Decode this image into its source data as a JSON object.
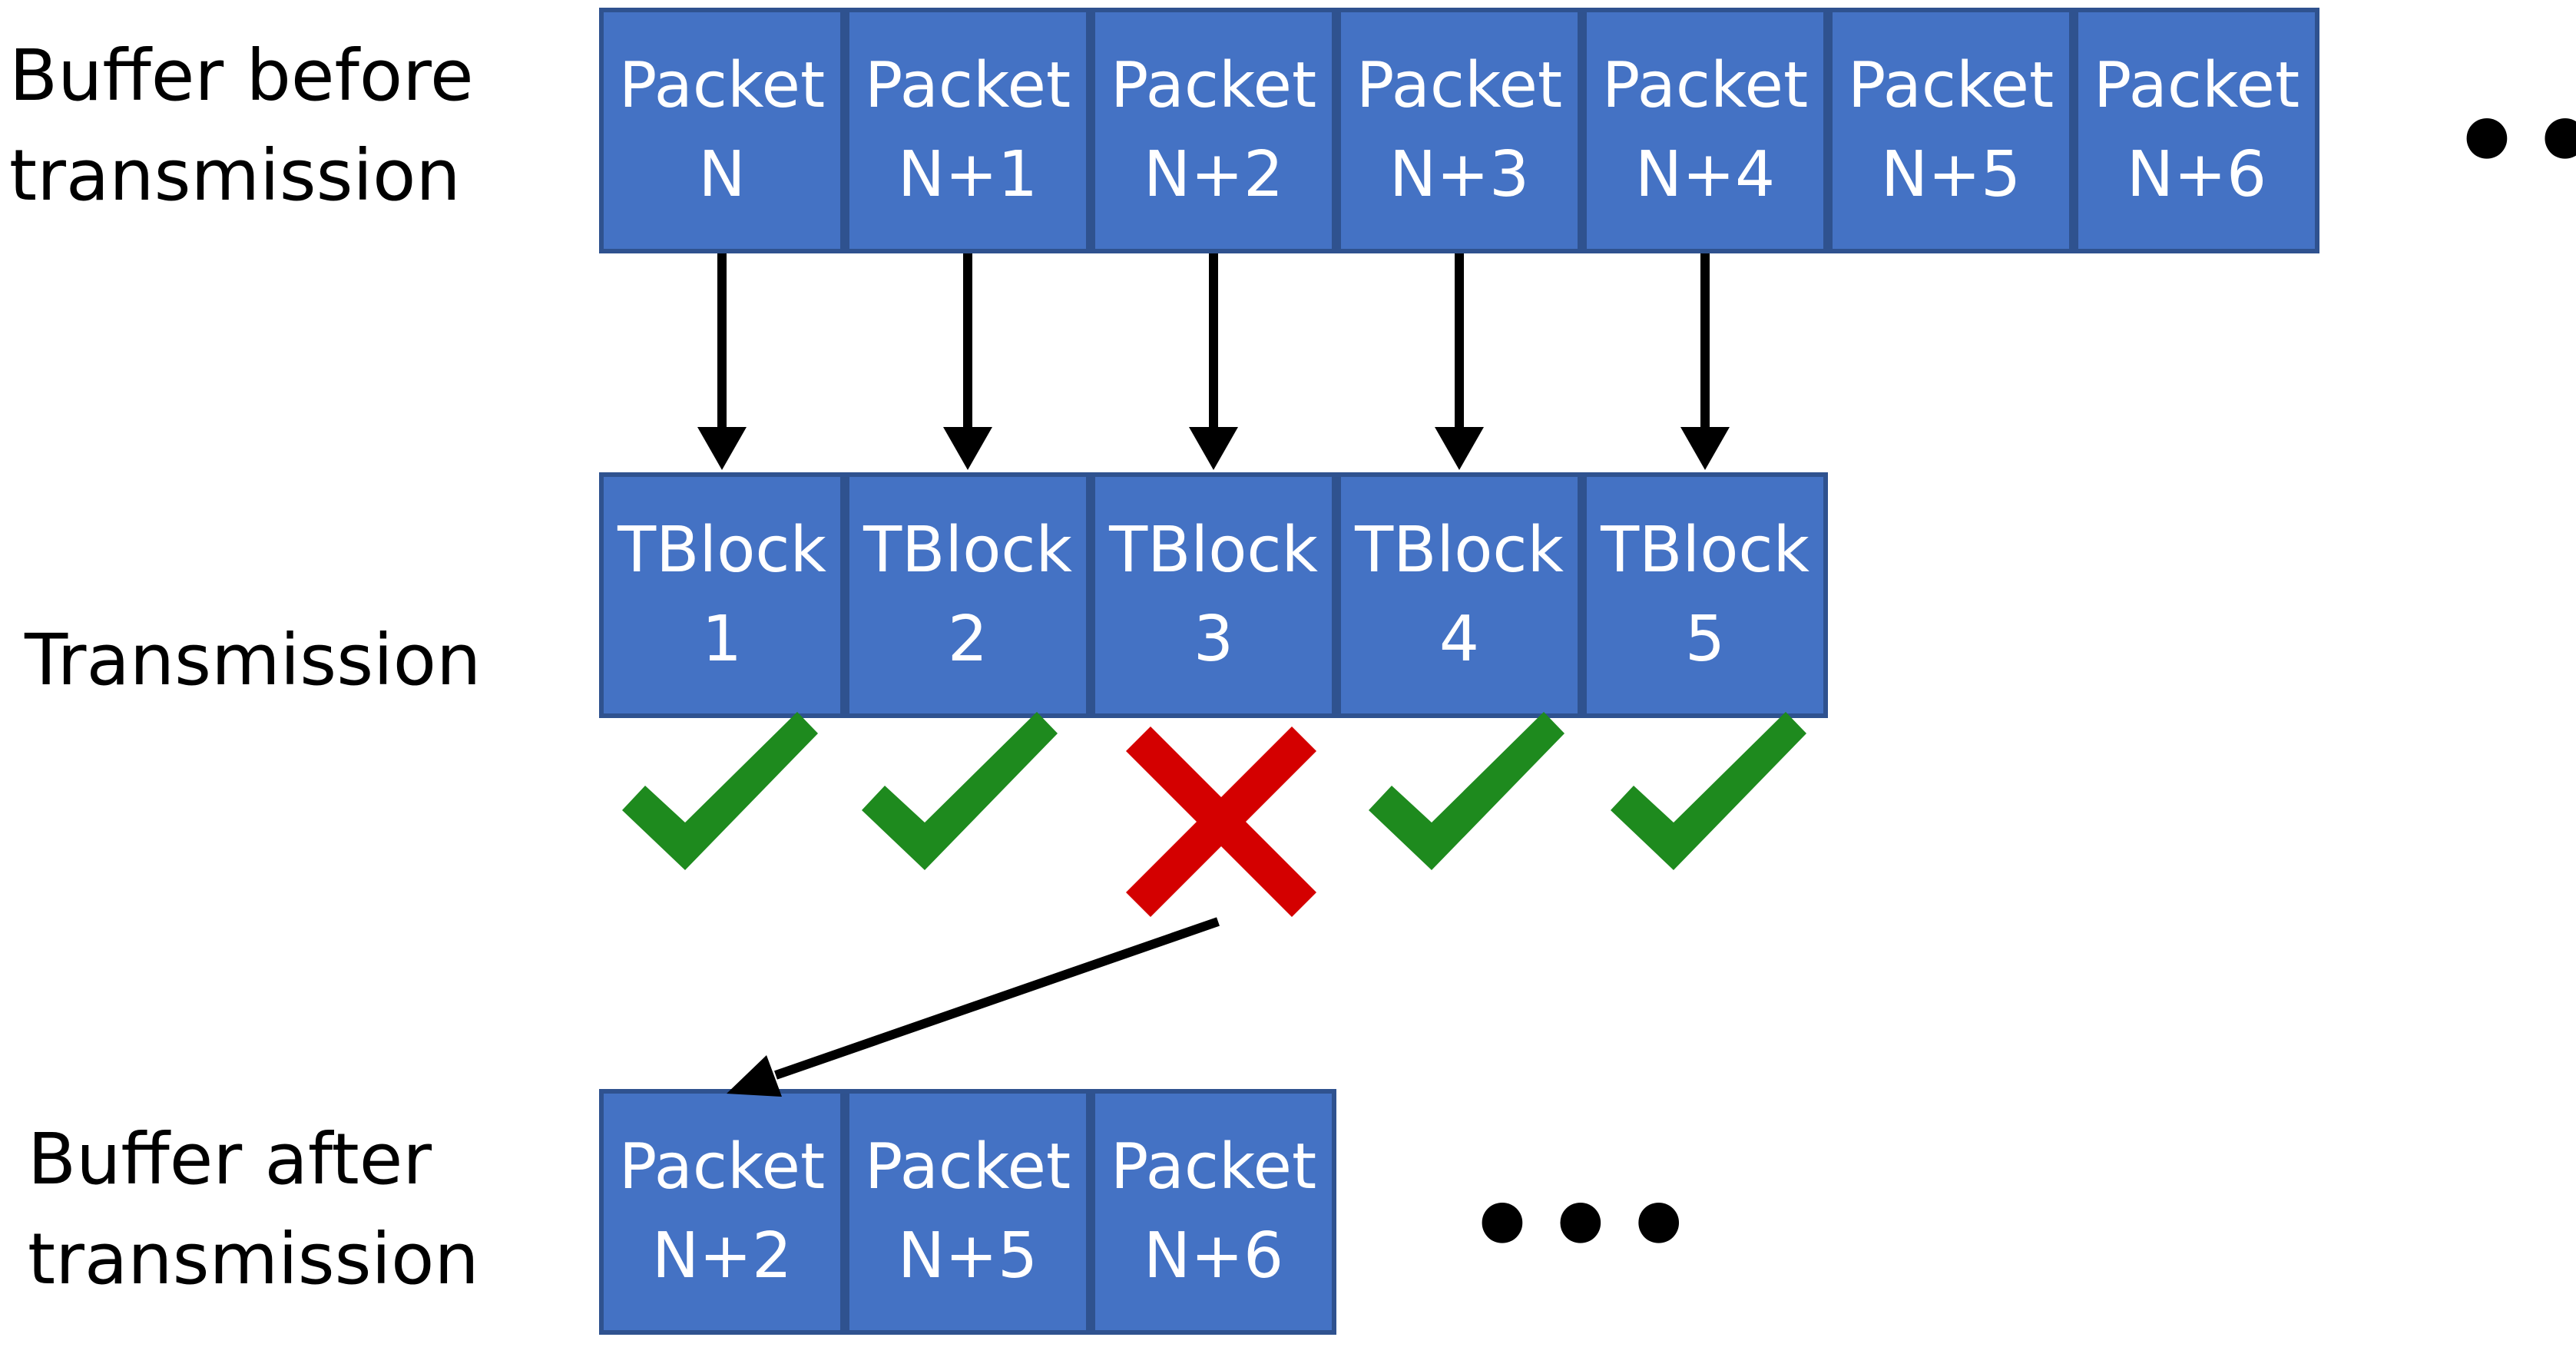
{
  "labels": {
    "buffer_before": [
      "Buffer before",
      "transmission"
    ],
    "transmission": "Transmission",
    "buffer_after": [
      "Buffer after",
      "transmission"
    ]
  },
  "buffer_before": [
    {
      "line1": "Packet",
      "line2": "N"
    },
    {
      "line1": "Packet",
      "line2": "N+1"
    },
    {
      "line1": "Packet",
      "line2": "N+2"
    },
    {
      "line1": "Packet",
      "line2": "N+3"
    },
    {
      "line1": "Packet",
      "line2": "N+4"
    },
    {
      "line1": "Packet",
      "line2": "N+5"
    },
    {
      "line1": "Packet",
      "line2": "N+6"
    }
  ],
  "transmission": [
    {
      "line1": "TBlock",
      "line2": "1",
      "status": "success"
    },
    {
      "line1": "TBlock",
      "line2": "2",
      "status": "success"
    },
    {
      "line1": "TBlock",
      "line2": "3",
      "status": "failed"
    },
    {
      "line1": "TBlock",
      "line2": "4",
      "status": "success"
    },
    {
      "line1": "TBlock",
      "line2": "5",
      "status": "success"
    }
  ],
  "buffer_after": [
    {
      "line1": "Packet",
      "line2": "N+2"
    },
    {
      "line1": "Packet",
      "line2": "N+5"
    },
    {
      "line1": "Packet",
      "line2": "N+6"
    }
  ],
  "ellipsis": "•••",
  "colors": {
    "cell_fill": "#4472c4",
    "cell_border": "#2f528f",
    "check": "#1e8a1e",
    "cross": "#d40000",
    "arrow": "#000000"
  },
  "icons": {
    "success": "checkmark-icon",
    "failed": "cross-icon"
  }
}
